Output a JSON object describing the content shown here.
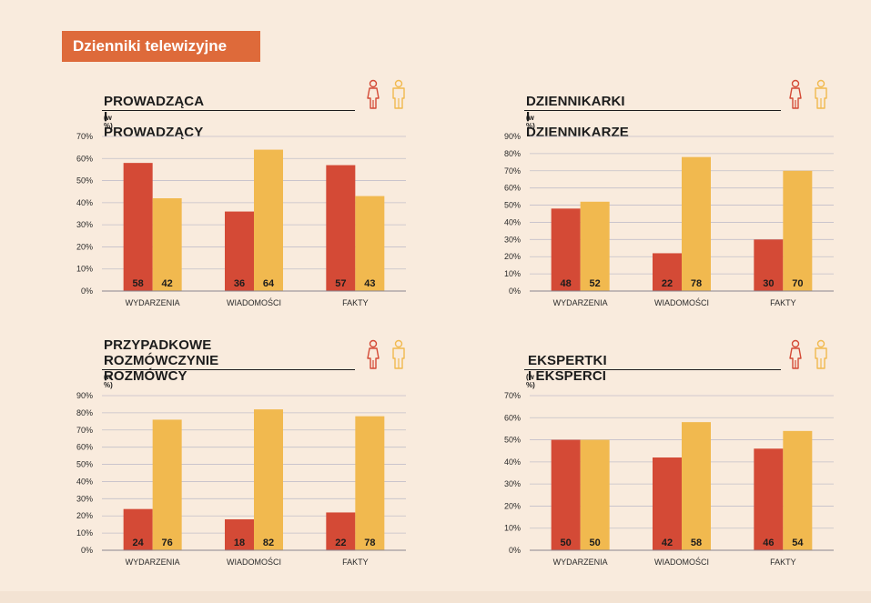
{
  "header": {
    "title": "Dzienniki telewizyjne"
  },
  "colors": {
    "women": "#d44a36",
    "men": "#f1b94f",
    "accent": "#de6a3a",
    "background": "#f9ebdd"
  },
  "icons": {
    "women": "woman-icon",
    "men": "man-icon"
  },
  "chart_data": [
    {
      "type": "bar",
      "title": "PROWADZĄCA I PROWADZĄCY",
      "unit": "(w %)",
      "categories": [
        "WYDARZENIA",
        "WIADOMOŚCI",
        "FAKTY"
      ],
      "series": [
        {
          "values": [
            58,
            36,
            57
          ]
        },
        {
          "values": [
            42,
            64,
            43
          ]
        }
      ],
      "ylim": [
        0,
        70
      ],
      "yticks": [
        "0%",
        "10%",
        "20%",
        "30%",
        "40%",
        "50%",
        "60%",
        "70%"
      ],
      "grid": true
    },
    {
      "type": "bar",
      "title": "DZIENNIKARKI I DZIENNIKARZE",
      "unit": "(w %)",
      "categories": [
        "WYDARZENIA",
        "WIADOMOŚCI",
        "FAKTY"
      ],
      "series": [
        {
          "values": [
            48,
            22,
            30
          ]
        },
        {
          "values": [
            52,
            78,
            70
          ]
        }
      ],
      "ylim": [
        0,
        90
      ],
      "yticks": [
        "0%",
        "10%",
        "20%",
        "30%",
        "40%",
        "50%",
        "60%",
        "70%",
        "80%",
        "90%"
      ],
      "grid": true
    },
    {
      "type": "bar",
      "title": "PRZYPADKOWE ROZMÓWCZYNIE I ROZMÓWCY",
      "title_lines": [
        "PRZYPADKOWE ROZMÓWCZYNIE",
        "I ROZMÓWCY"
      ],
      "unit": "(w %)",
      "categories": [
        "WYDARZENIA",
        "WIADOMOŚCI",
        "FAKTY"
      ],
      "series": [
        {
          "values": [
            24,
            18,
            22
          ]
        },
        {
          "values": [
            76,
            82,
            78
          ]
        }
      ],
      "ylim": [
        0,
        90
      ],
      "yticks": [
        "0%",
        "10%",
        "20%",
        "30%",
        "40%",
        "50%",
        "60%",
        "70%",
        "80%",
        "90%"
      ],
      "grid": true
    },
    {
      "type": "bar",
      "title": "EKSPERTKI I EKSPERCI",
      "unit": "(w %)",
      "categories": [
        "WYDARZENIA",
        "WIADOMOŚCI",
        "FAKTY"
      ],
      "series": [
        {
          "values": [
            50,
            42,
            46
          ]
        },
        {
          "values": [
            50,
            58,
            54
          ]
        }
      ],
      "ylim": [
        0,
        70
      ],
      "yticks": [
        "0%",
        "10%",
        "20%",
        "30%",
        "40%",
        "50%",
        "60%",
        "70%"
      ],
      "grid": true
    }
  ]
}
